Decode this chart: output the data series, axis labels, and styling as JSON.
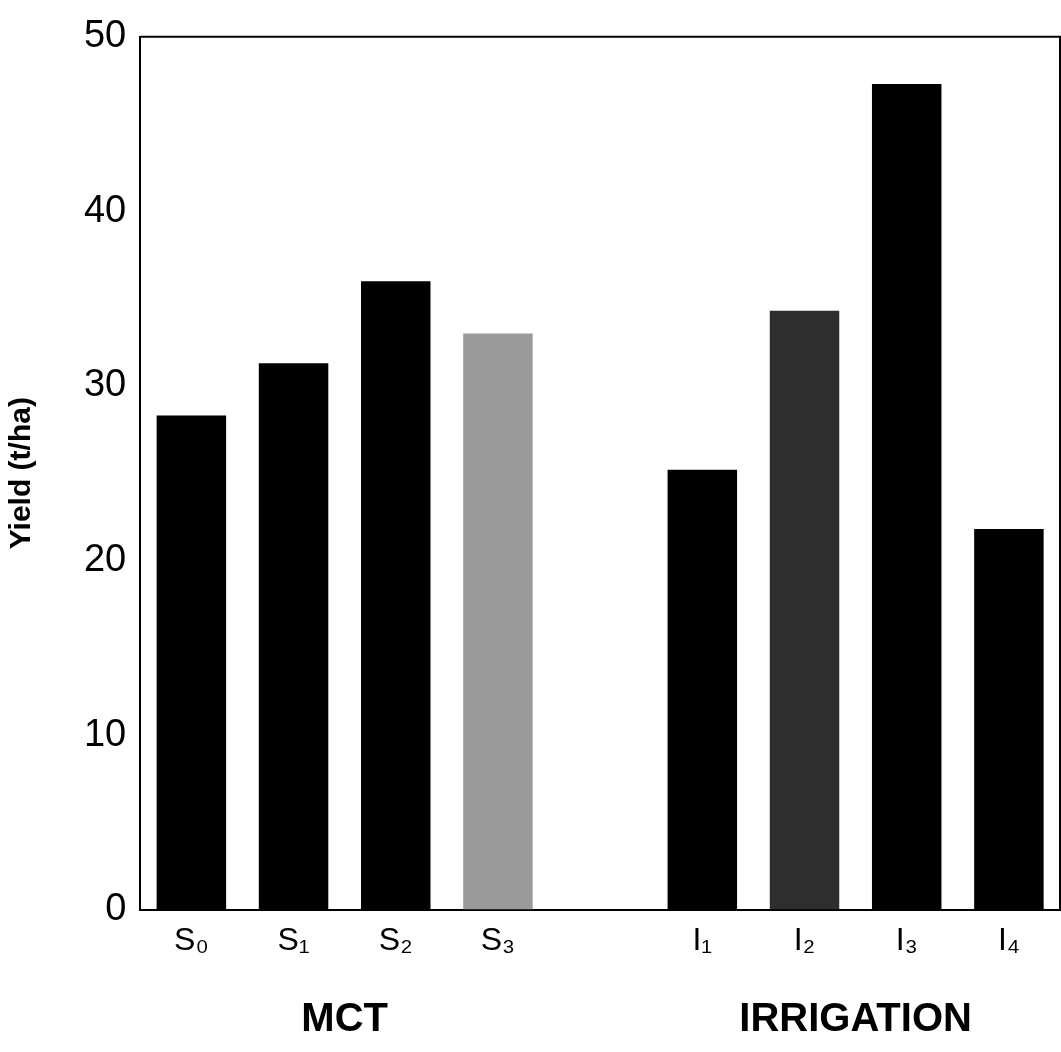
{
  "chart_data": {
    "type": "bar",
    "ylabel": "Yield (t/ha)",
    "categories": [
      "S₀",
      "S₁",
      "S₂",
      "S₃",
      null,
      "I₁",
      "I₂",
      "I₃",
      "I₄"
    ],
    "values": [
      28.3,
      31.3,
      36.0,
      33.0,
      null,
      25.2,
      34.3,
      47.3,
      21.8
    ],
    "colors": [
      "#000000",
      "#000000",
      "#000000",
      "#9a9a9a",
      "#000000",
      "#000000",
      "#2e2e2e",
      "#000000",
      "#000000"
    ],
    "ylim": [
      0,
      50
    ],
    "yticks": [
      0,
      10,
      20,
      30,
      40,
      50
    ],
    "grid": false,
    "legend": false,
    "annotations": [
      "MCT",
      "IRRIGATION"
    ]
  }
}
